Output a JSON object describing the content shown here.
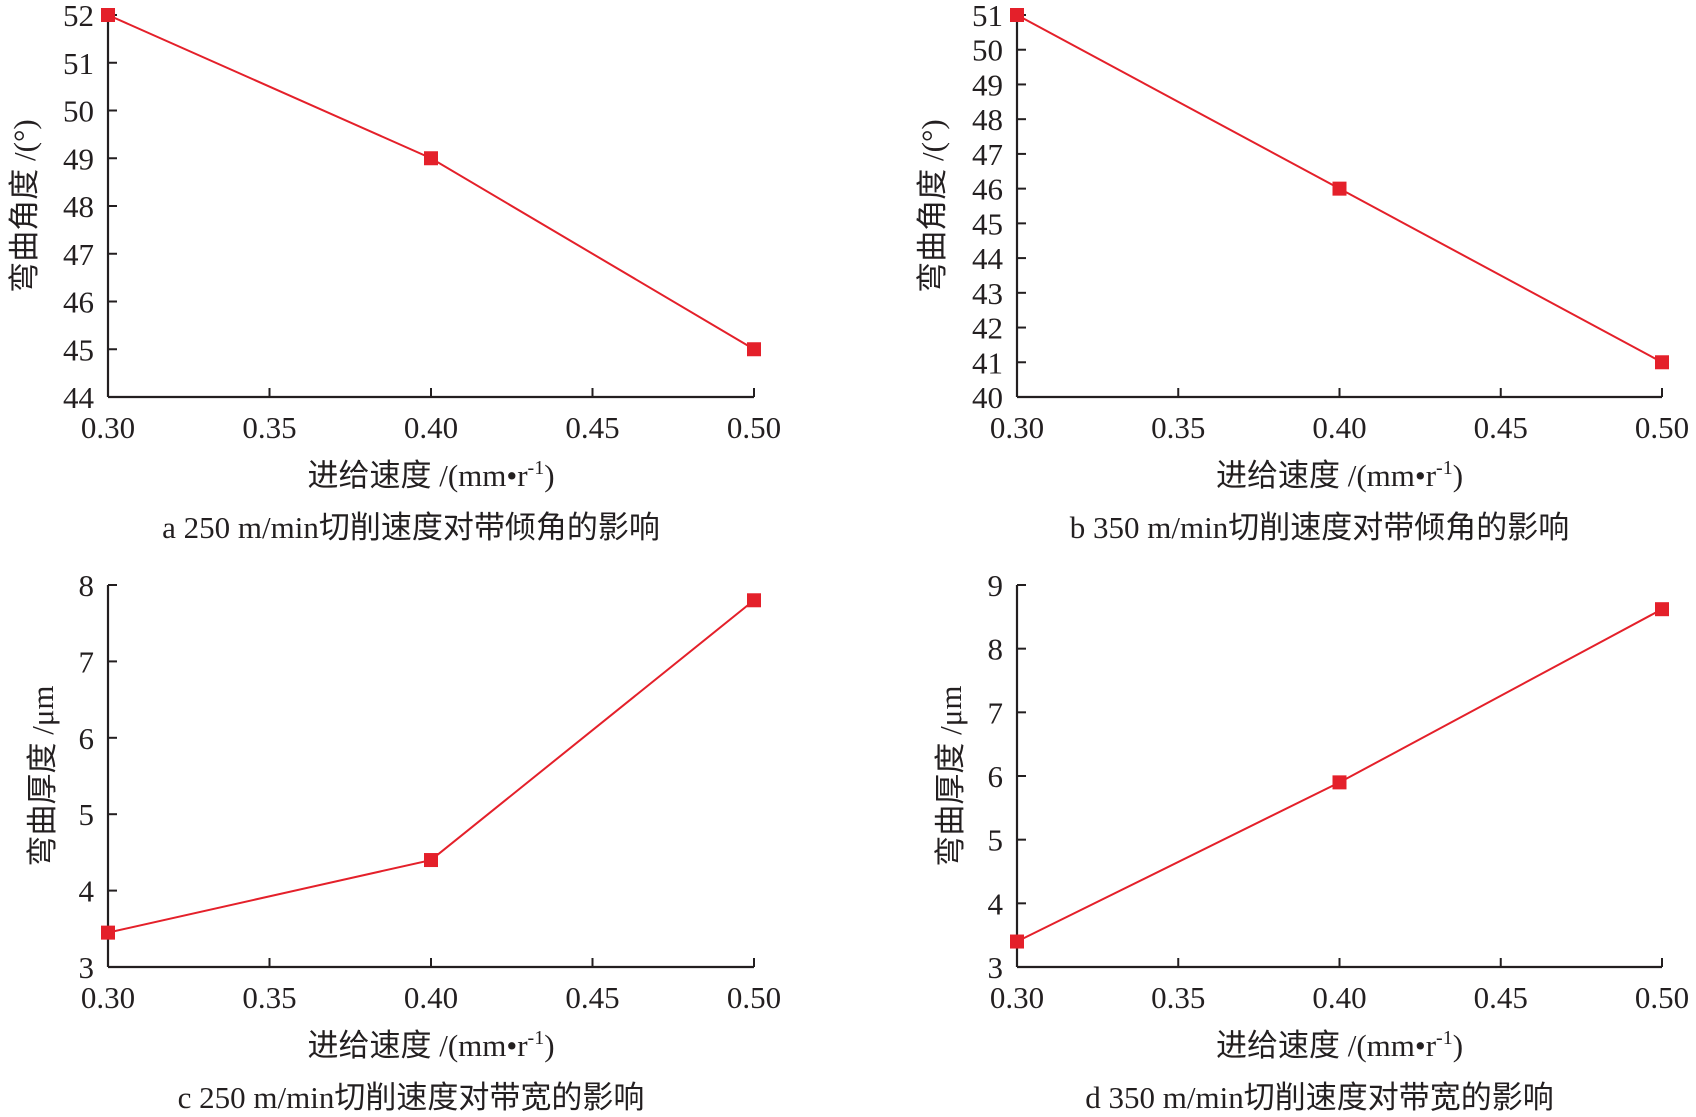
{
  "colors": {
    "series": "#e4202a",
    "axis": "#231f20"
  },
  "chart_data": [
    {
      "type": "line",
      "caption": "a 250 m/min切削速度对带倾角的影响",
      "xlabel": {
        "main": "进给速度 /(mm•r",
        "sup": "-1",
        "end": ")"
      },
      "ylabel": "弯曲角度 /(°)",
      "x": [
        0.3,
        0.4,
        0.5
      ],
      "y": [
        52,
        49,
        45
      ],
      "xlim": [
        0.3,
        0.5
      ],
      "ylim": [
        44,
        52
      ],
      "xticks": [
        "0.30",
        "0.35",
        "0.40",
        "0.45",
        "0.50"
      ],
      "yticks": [
        "44",
        "45",
        "46",
        "47",
        "48",
        "49",
        "50",
        "51",
        "52"
      ],
      "marker": "square",
      "grid": false
    },
    {
      "type": "line",
      "caption": "b 350 m/min切削速度对带倾角的影响",
      "xlabel": {
        "main": "进给速度 /(mm•r",
        "sup": "-1",
        "end": ")"
      },
      "ylabel": "弯曲角度 /(°)",
      "x": [
        0.3,
        0.4,
        0.5
      ],
      "y": [
        51,
        46,
        41
      ],
      "xlim": [
        0.3,
        0.5
      ],
      "ylim": [
        40,
        51
      ],
      "xticks": [
        "0.30",
        "0.35",
        "0.40",
        "0.45",
        "0.50"
      ],
      "yticks": [
        "40",
        "41",
        "42",
        "43",
        "44",
        "45",
        "46",
        "47",
        "48",
        "49",
        "50",
        "51"
      ],
      "marker": "square",
      "grid": false
    },
    {
      "type": "line",
      "caption": "c 250 m/min切削速度对带宽的影响",
      "xlabel": {
        "main": "进给速度 /(mm•r",
        "sup": "-1",
        "end": ")"
      },
      "ylabel": "弯曲厚度 /μm",
      "x": [
        0.3,
        0.4,
        0.5
      ],
      "y": [
        3.45,
        4.4,
        7.8
      ],
      "xlim": [
        0.3,
        0.5
      ],
      "ylim": [
        3,
        8
      ],
      "xticks": [
        "0.30",
        "0.35",
        "0.40",
        "0.45",
        "0.50"
      ],
      "yticks": [
        "3",
        "4",
        "5",
        "6",
        "7",
        "8"
      ],
      "marker": "square",
      "grid": false
    },
    {
      "type": "line",
      "caption": "d 350 m/min切削速度对带宽的影响",
      "xlabel": {
        "main": "进给速度 /(mm•r",
        "sup": "-1",
        "end": ")"
      },
      "ylabel": "弯曲厚度 /μm",
      "x": [
        0.3,
        0.4,
        0.5
      ],
      "y": [
        3.4,
        5.9,
        8.62
      ],
      "xlim": [
        0.3,
        0.5
      ],
      "ylim": [
        3,
        9
      ],
      "xticks": [
        "0.30",
        "0.35",
        "0.40",
        "0.45",
        "0.50"
      ],
      "yticks": [
        "3",
        "4",
        "5",
        "6",
        "7",
        "8",
        "9"
      ],
      "marker": "square",
      "grid": false
    }
  ]
}
